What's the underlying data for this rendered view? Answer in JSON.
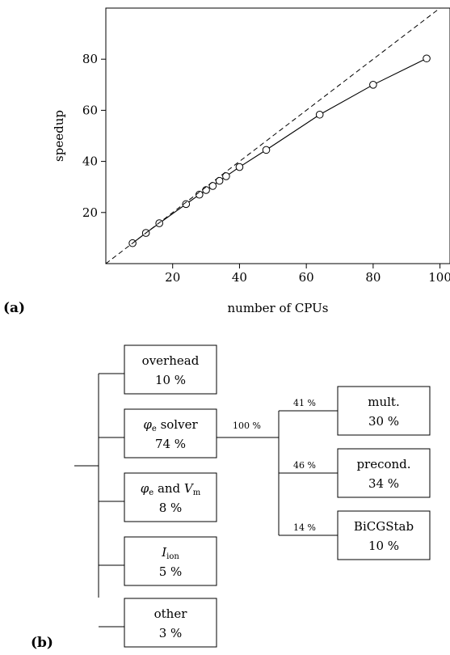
{
  "panel_a": {
    "label": "(a)",
    "chart_data": {
      "type": "line",
      "xlabel": "number of CPUs",
      "ylabel": "speedup",
      "xlim": [
        0,
        103
      ],
      "ylim": [
        0,
        100
      ],
      "x_ticks": [
        20,
        40,
        60,
        80,
        100
      ],
      "y_ticks": [
        20,
        40,
        60,
        80
      ],
      "grid": false,
      "series": [
        {
          "style": "solid-with-circles",
          "x": [
            8,
            12,
            16,
            24,
            28,
            30,
            32,
            34,
            36,
            40,
            48,
            64,
            80,
            96
          ],
          "y": [
            8,
            12,
            15.8,
            23.3,
            27,
            28.8,
            30.4,
            32.4,
            34.2,
            37.8,
            44.5,
            58.3,
            70,
            80.3
          ]
        },
        {
          "style": "dashed",
          "x": [
            0,
            100
          ],
          "y": [
            0,
            100
          ]
        }
      ]
    }
  },
  "panel_b": {
    "label": "(b)",
    "left_boxes": [
      {
        "line1": "overhead",
        "line2": "10 %"
      },
      {
        "line1": "φe solver",
        "line2": "74 %"
      },
      {
        "line1": "φe and Vm",
        "line2": "8 %"
      },
      {
        "line1": "Iion",
        "line2": "5 %"
      },
      {
        "line1": "other",
        "line2": "3 %"
      }
    ],
    "branch_label": "100 %",
    "right_boxes": [
      {
        "line1": "mult.",
        "line2": "30 %",
        "edge_label": "41 %"
      },
      {
        "line1": "precond.",
        "line2": "34 %",
        "edge_label": "46 %"
      },
      {
        "line1": "BiCGStab",
        "line2": "10 %",
        "edge_label": "14 %"
      }
    ]
  }
}
